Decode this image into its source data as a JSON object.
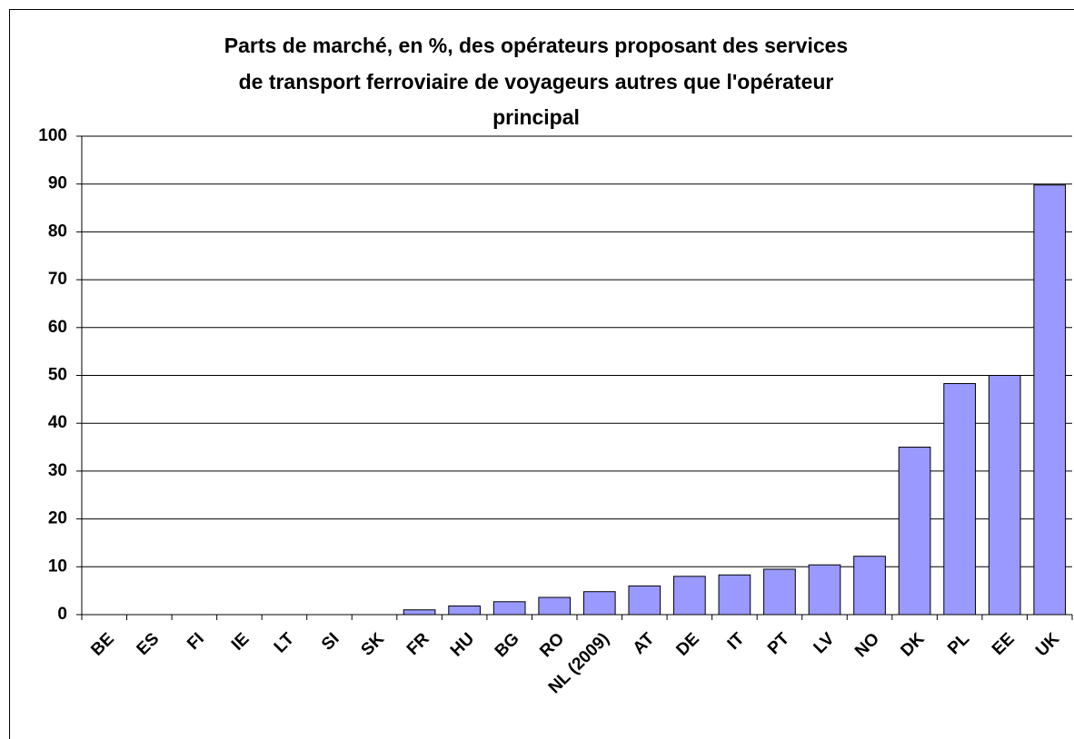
{
  "chart_data": {
    "type": "bar",
    "title": [
      "Parts de marché, en %, des opérateurs proposant des services",
      "de transport ferroviaire de voyageurs autres que l'opérateur",
      "principal"
    ],
    "categories": [
      "BE",
      "ES",
      "FI",
      "IE",
      "LT",
      "SI",
      "SK",
      "FR",
      "HU",
      "BG",
      "RO",
      "NL (2009)",
      "AT",
      "DE",
      "IT",
      "PT",
      "LV",
      "NO",
      "DK",
      "PL",
      "EE",
      "UK"
    ],
    "values": [
      0,
      0,
      0,
      0,
      0,
      0,
      0,
      1,
      1.8,
      2.7,
      3.6,
      4.8,
      6,
      8,
      8.3,
      9.5,
      10.4,
      12.2,
      35,
      48.3,
      50,
      89.8
    ],
    "color": "#9999ff",
    "ylim": [
      0,
      100
    ],
    "yticks": [
      0,
      10,
      20,
      30,
      40,
      50,
      60,
      70,
      80,
      90,
      100
    ],
    "grid": true
  }
}
